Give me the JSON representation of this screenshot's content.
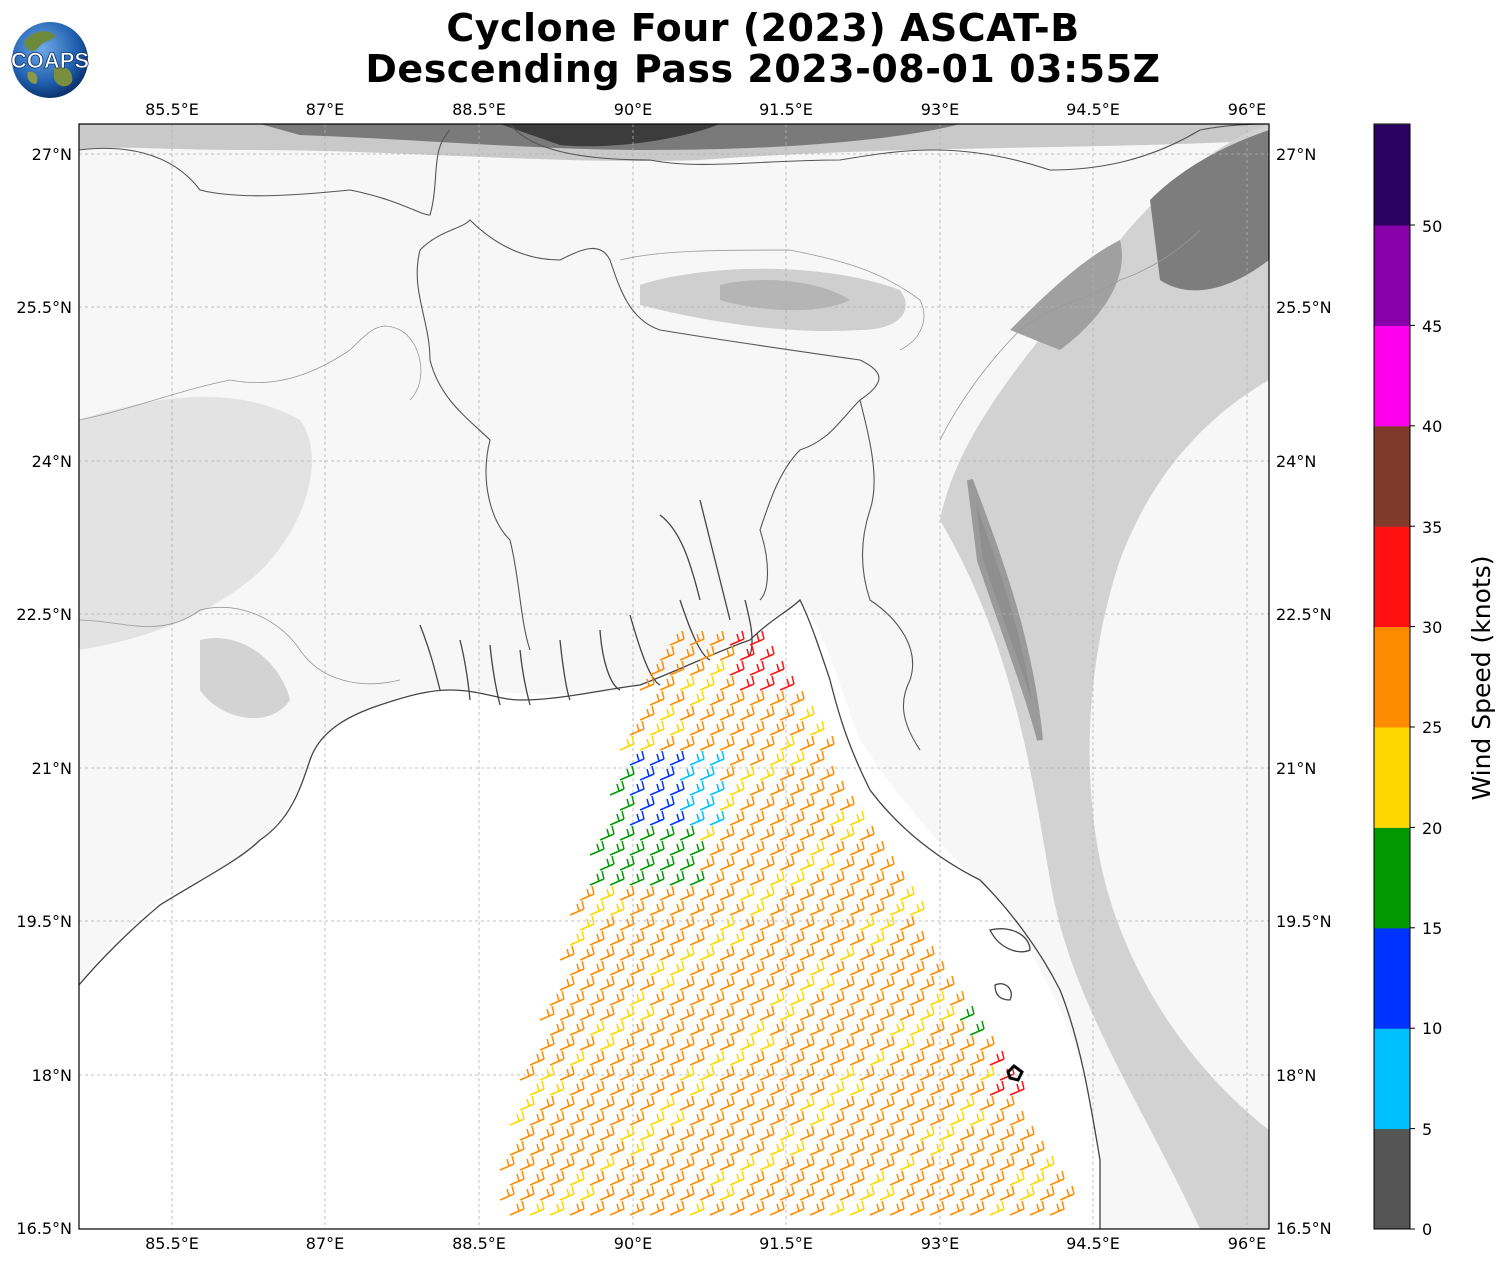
{
  "title": {
    "line1": "Cyclone Four (2023) ASCAT-B",
    "line2": "Descending Pass 2023-08-01 03:55Z"
  },
  "logo": {
    "text": "COAPS",
    "icon": "globe-logo-icon"
  },
  "map": {
    "lon_range": [
      84.5,
      96.2
    ],
    "lat_range": [
      16.5,
      27.3
    ],
    "lon_ticks": [
      "85.5°E",
      "87°E",
      "88.5°E",
      "90°E",
      "91.5°E",
      "93°E",
      "94.5°E",
      "96°E"
    ],
    "lon_tick_values": [
      85.5,
      87,
      88.5,
      90,
      91.5,
      93,
      94.5,
      96
    ],
    "lat_ticks": [
      "27°N",
      "25.5°N",
      "24°N",
      "22.5°N",
      "21°N",
      "19.5°N",
      "18°N",
      "16.5°N"
    ],
    "lat_tick_values": [
      27,
      25.5,
      24,
      22.5,
      21,
      19.5,
      18,
      16.5
    ],
    "gridlines": true,
    "storm_center": {
      "lon": 93.75,
      "lat": 18.0
    }
  },
  "colorbar": {
    "label": "Wind Speed (knots)",
    "tick_labels": [
      "0",
      "5",
      "10",
      "15",
      "20",
      "25",
      "30",
      "35",
      "40",
      "45",
      "50"
    ],
    "bins": [
      {
        "min": 0,
        "max": 5,
        "color": "#555555"
      },
      {
        "min": 5,
        "max": 10,
        "color": "#00bfff"
      },
      {
        "min": 10,
        "max": 15,
        "color": "#0033ff"
      },
      {
        "min": 15,
        "max": 20,
        "color": "#009900"
      },
      {
        "min": 20,
        "max": 25,
        "color": "#ffd700"
      },
      {
        "min": 25,
        "max": 30,
        "color": "#ff8c00"
      },
      {
        "min": 30,
        "max": 35,
        "color": "#ff1111"
      },
      {
        "min": 35,
        "max": 40,
        "color": "#7f3a2a"
      },
      {
        "min": 40,
        "max": 45,
        "color": "#ff00ee"
      },
      {
        "min": 45,
        "max": 50,
        "color": "#8800aa"
      },
      {
        "min": 50,
        "max": 55,
        "color": "#2a0060"
      }
    ]
  }
}
